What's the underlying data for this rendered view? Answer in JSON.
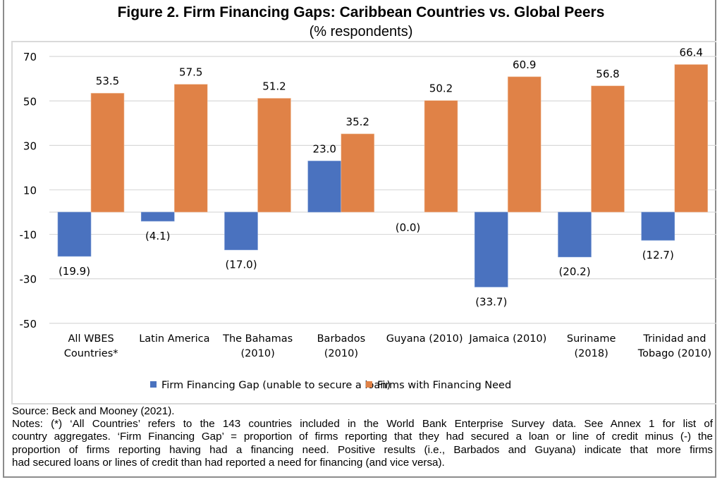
{
  "chart_data": {
    "type": "bar",
    "title": "Figure 2. Firm Financing Gaps: Caribbean Countries vs. Global Peers",
    "subtitle": "(% respondents)",
    "xlabel": "",
    "ylabel": "",
    "ylim": [
      -55,
      72
    ],
    "yticks": [
      70,
      50,
      30,
      10,
      -10,
      -30,
      -50
    ],
    "grid": true,
    "legend_position": "bottom",
    "categories": [
      [
        "All WBES",
        "Countries*"
      ],
      [
        "Latin America"
      ],
      [
        "The Bahamas",
        "(2010)"
      ],
      [
        "Barbados",
        "(2010)"
      ],
      [
        "Guyana (2010)"
      ],
      [
        "Jamaica (2010)"
      ],
      [
        "Suriname",
        "(2018)"
      ],
      [
        "Trinidad and",
        "Tobago (2010)"
      ]
    ],
    "series": [
      {
        "name": "Firm Financing Gap (unable to secure a loan)",
        "color": "#4a72bf",
        "values": [
          -19.9,
          -4.1,
          -17.0,
          23.0,
          0.0,
          -33.7,
          -20.2,
          -12.7
        ],
        "labels": [
          "(19.9)",
          "(4.1)",
          "(17.0)",
          "23.0",
          "(0.0)",
          "(33.7)",
          "(20.2)",
          "(12.7)"
        ]
      },
      {
        "name": "Firms with Financing Need",
        "color": "#e08247",
        "values": [
          53.5,
          57.5,
          51.2,
          35.2,
          50.2,
          60.9,
          56.8,
          66.4
        ],
        "labels": [
          "53.5",
          "57.5",
          "51.2",
          "35.2",
          "50.2",
          "60.9",
          "56.8",
          "66.4"
        ]
      }
    ]
  },
  "notes": {
    "source": "Source: Beck and Mooney (2021).",
    "lines": [
      "Notes: (*) ‘All Countries’ refers to the 143 countries included in the World Bank Enterprise Survey data. See Annex 1 for list of",
      "country aggregates. ‘Firm Financing Gap’ = proportion of firms reporting that they had secured a loan or line of credit minus (-) the",
      "proportion of firms reporting having had a financing need. Positive results (i.e., Barbados and Guyana) indicate that more firms",
      "had secured loans or lines of credit than had reported a need for financing (and vice versa)."
    ]
  }
}
